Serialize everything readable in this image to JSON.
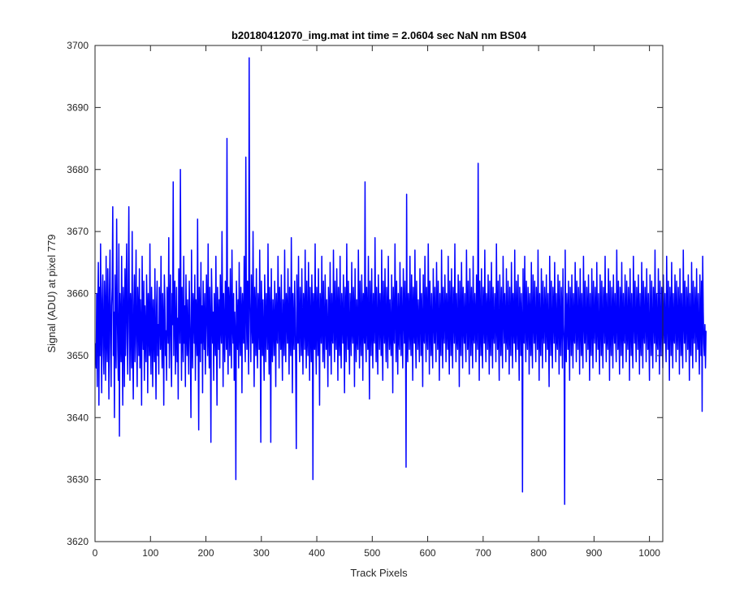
{
  "chart_data": {
    "type": "line",
    "title": "b20180412070_img.mat int time = 2.0604 sec  NaN nm BS04",
    "xlabel": "Track Pixels",
    "ylabel": "Signal (ADU) at pixel 779",
    "xlim": [
      0,
      1024
    ],
    "ylim": [
      3620,
      3700
    ],
    "xticks": [
      0,
      100,
      200,
      300,
      400,
      500,
      600,
      700,
      800,
      900,
      1000
    ],
    "yticks": [
      3620,
      3630,
      3640,
      3650,
      3660,
      3670,
      3680,
      3690,
      3700
    ],
    "grid": false,
    "legend": "none",
    "series": [
      {
        "color": "#0000ff",
        "x_start": 1,
        "x_step": 1,
        "mean": 3655,
        "values": [
          3652,
          3648,
          3660,
          3645,
          3658,
          3665,
          3642,
          3661,
          3650,
          3668,
          3655,
          3644,
          3659,
          3663,
          3651,
          3647,
          3662,
          3657,
          3646,
          3666,
          3653,
          3649,
          3664,
          3656,
          3643,
          3660,
          3667,
          3652,
          3645,
          3658,
          3661,
          3674,
          3650,
          3657,
          3640,
          3663,
          3654,
          3648,
          3672,
          3659,
          3651,
          3646,
          3668,
          3637,
          3660,
          3655,
          3649,
          3666,
          3653,
          3642,
          3661,
          3657,
          3645,
          3664,
          3650,
          3659,
          3668,
          3652,
          3647,
          3662,
          3674,
          3654,
          3646,
          3660,
          3656,
          3648,
          3670,
          3651,
          3643,
          3658,
          3663,
          3649,
          3655,
          3667,
          3652,
          3645,
          3661,
          3657,
          3650,
          3664,
          3648,
          3659,
          3654,
          3642,
          3666,
          3655,
          3651,
          3662,
          3646,
          3658,
          3653,
          3649,
          3663,
          3657,
          3644,
          3660,
          3655,
          3650,
          3668,
          3652,
          3647,
          3661,
          3656,
          3645,
          3659,
          3654,
          3649,
          3664,
          3652,
          3643,
          3658,
          3662,
          3650,
          3655,
          3647,
          3661,
          3657,
          3651,
          3666,
          3653,
          3648,
          3660,
          3655,
          3642,
          3663,
          3659,
          3650,
          3654,
          3646,
          3661,
          3656,
          3652,
          3669,
          3648,
          3657,
          3663,
          3651,
          3645,
          3660,
          3655,
          3678,
          3650,
          3658,
          3662,
          3647,
          3654,
          3661,
          3649,
          3656,
          3643,
          3664,
          3659,
          3652,
          3680,
          3657,
          3646,
          3661,
          3654,
          3649,
          3666,
          3652,
          3658,
          3645,
          3663,
          3655,
          3650,
          3659,
          3653,
          3647,
          3662,
          3656,
          3651,
          3640,
          3667,
          3654,
          3648,
          3660,
          3657,
          3652,
          3663,
          3646,
          3659,
          3655,
          3650,
          3672,
          3653,
          3638,
          3661,
          3656,
          3649,
          3665,
          3652,
          3658,
          3644,
          3662,
          3655,
          3651,
          3660,
          3647,
          3654,
          3663,
          3657,
          3650,
          3668,
          3653,
          3648,
          3661,
          3655,
          3636,
          3664,
          3659,
          3652,
          3657,
          3646,
          3660,
          3654,
          3650,
          3666,
          3653,
          3642,
          3661,
          3656,
          3651,
          3659,
          3648,
          3663,
          3655,
          3652,
          3670,
          3657,
          3645,
          3660,
          3654,
          3649,
          3662,
          3656,
          3651,
          3685,
          3653,
          3647,
          3661,
          3658,
          3650,
          3664,
          3654,
          3648,
          3667,
          3655,
          3652,
          3660,
          3646,
          3657,
          3653,
          3630,
          3662,
          3656,
          3651,
          3659,
          3648,
          3665,
          3654,
          3650,
          3661,
          3657,
          3644,
          3660,
          3655,
          3652,
          3666,
          3653,
          3649,
          3682,
          3658,
          3651,
          3662,
          3655,
          3647,
          3698,
          3660,
          3654,
          3649,
          3663,
          3656,
          3652,
          3670,
          3655,
          3645,
          3661,
          3657,
          3650,
          3664,
          3653,
          3648,
          3660,
          3656,
          3651,
          3667,
          3654,
          3636,
          3662,
          3657,
          3650,
          3659,
          3652,
          3646,
          3663,
          3655,
          3649,
          3660,
          3656,
          3651,
          3668,
          3654,
          3647,
          3661,
          3657,
          3636,
          3664,
          3653,
          3649,
          3659,
          3655,
          3650,
          3662,
          3656,
          3645,
          3660,
          3654,
          3652,
          3666,
          3657,
          3648,
          3661,
          3655,
          3651,
          3663,
          3653,
          3646,
          3659,
          3656,
          3650,
          3667,
          3654,
          3649,
          3660,
          3657,
          3652,
          3664,
          3655,
          3647,
          3661,
          3653,
          3650,
          3669,
          3656,
          3644,
          3660,
          3654,
          3651,
          3662,
          3657,
          3648,
          3635,
          3663,
          3655,
          3652,
          3666,
          3653,
          3649,
          3661,
          3656,
          3650,
          3664,
          3654,
          3647,
          3660,
          3657,
          3651,
          3667,
          3655,
          3648,
          3662,
          3653,
          3650,
          3665,
          3656,
          3646,
          3661,
          3654,
          3649,
          3663,
          3657,
          3630,
          3660,
          3655,
          3651,
          3668,
          3653,
          3647,
          3661,
          3656,
          3650,
          3664,
          3654,
          3642,
          3660,
          3657,
          3652,
          3666,
          3655,
          3649,
          3662,
          3653,
          3648,
          3663,
          3656,
          3651,
          3659,
          3654,
          3645,
          3661,
          3657,
          3650,
          3665,
          3655,
          3647,
          3660,
          3653,
          3652,
          3667,
          3656,
          3649,
          3662,
          3654,
          3651,
          3664,
          3657,
          3646,
          3661,
          3655,
          3650,
          3666,
          3653,
          3648,
          3660,
          3656,
          3652,
          3663,
          3654,
          3644,
          3661,
          3657,
          3649,
          3668,
          3655,
          3651,
          3662,
          3653,
          3647,
          3660,
          3656,
          3650,
          3665,
          3654,
          3652,
          3661,
          3657,
          3645,
          3664,
          3655,
          3649,
          3659,
          3653,
          3651,
          3667,
          3656,
          3648,
          3662,
          3654,
          3650,
          3663,
          3657,
          3646,
          3660,
          3655,
          3652,
          3678,
          3653,
          3649,
          3661,
          3656,
          3651,
          3666,
          3654,
          3643,
          3662,
          3657,
          3650,
          3664,
          3655,
          3648,
          3660,
          3653,
          3652,
          3669,
          3656,
          3649,
          3661,
          3654,
          3647,
          3663,
          3657,
          3651,
          3660,
          3655,
          3650,
          3667,
          3653,
          3646,
          3662,
          3656,
          3652,
          3664,
          3654,
          3649,
          3661,
          3657,
          3648,
          3666,
          3655,
          3651,
          3659,
          3653,
          3650,
          3663,
          3656,
          3644,
          3661,
          3654,
          3652,
          3668,
          3657,
          3649,
          3662,
          3655,
          3647,
          3660,
          3653,
          3651,
          3665,
          3656,
          3650,
          3661,
          3654,
          3648,
          3664,
          3657,
          3652,
          3662,
          3655,
          3632,
          3676,
          3653,
          3649,
          3660,
          3656,
          3651,
          3666,
          3654,
          3650,
          3663,
          3657,
          3646,
          3661,
          3655,
          3652,
          3667,
          3653,
          3648,
          3662,
          3656,
          3651,
          3659,
          3654,
          3649,
          3664,
          3657,
          3650,
          3660,
          3655,
          3645,
          3663,
          3653,
          3652,
          3666,
          3656,
          3649,
          3661,
          3654,
          3651,
          3668,
          3657,
          3647,
          3662,
          3655,
          3650,
          3660,
          3653,
          3648,
          3664,
          3656,
          3652,
          3661,
          3654,
          3649,
          3665,
          3657,
          3651,
          3662,
          3655,
          3646,
          3660,
          3653,
          3650,
          3667,
          3656,
          3648,
          3661,
          3654,
          3652,
          3663,
          3657,
          3649,
          3660,
          3655,
          3651,
          3666,
          3653,
          3647,
          3662,
          3656,
          3650,
          3664,
          3654,
          3648,
          3661,
          3657,
          3652,
          3668,
          3655,
          3649,
          3660,
          3653,
          3651,
          3663,
          3656,
          3645,
          3662,
          3654,
          3650,
          3665,
          3657,
          3648,
          3661,
          3655,
          3652,
          3660,
          3653,
          3649,
          3667,
          3656,
          3651,
          3662,
          3654,
          3647,
          3664,
          3657,
          3650,
          3661,
          3655,
          3648,
          3666,
          3653,
          3652,
          3660,
          3656,
          3649,
          3663,
          3654,
          3651,
          3681,
          3657,
          3646,
          3662,
          3655,
          3650,
          3664,
          3653,
          3648,
          3661,
          3656,
          3652,
          3667,
          3654,
          3649,
          3660,
          3657,
          3651,
          3663,
          3655,
          3647,
          3662,
          3653,
          3650,
          3665,
          3656,
          3648,
          3661,
          3654,
          3652,
          3660,
          3657,
          3649,
          3668,
          3655,
          3651,
          3662,
          3653,
          3646,
          3663,
          3656,
          3650,
          3661,
          3654,
          3648,
          3666,
          3657,
          3652,
          3660,
          3655,
          3649,
          3664,
          3653,
          3651,
          3662,
          3656,
          3647,
          3661,
          3654,
          3650,
          3665,
          3657,
          3648,
          3660,
          3655,
          3652,
          3667,
          3653,
          3649,
          3662,
          3656,
          3651,
          3663,
          3654,
          3646,
          3661,
          3657,
          3650,
          3660,
          3655,
          3628,
          3664,
          3653,
          3652,
          3666,
          3656,
          3649,
          3662,
          3654,
          3651,
          3661,
          3657,
          3647,
          3660,
          3655,
          3650,
          3665,
          3653,
          3648,
          3663,
          3656,
          3652,
          3662,
          3654,
          3649,
          3661,
          3657,
          3651,
          3667,
          3655,
          3646,
          3660,
          3653,
          3650,
          3664,
          3656,
          3648,
          3662,
          3654,
          3652,
          3661,
          3657,
          3649,
          3663,
          3655,
          3651,
          3660,
          3653,
          3645,
          3666,
          3656,
          3650,
          3662,
          3654,
          3648,
          3661,
          3657,
          3652,
          3665,
          3655,
          3649,
          3660,
          3653,
          3651,
          3663,
          3656,
          3647,
          3662,
          3654,
          3650,
          3661,
          3657,
          3648,
          3664,
          3655,
          3652,
          3626,
          3667,
          3653,
          3649,
          3660,
          3656,
          3651,
          3662,
          3654,
          3646,
          3661,
          3657,
          3650,
          3663,
          3655,
          3648,
          3660,
          3653,
          3652,
          3665,
          3656,
          3649,
          3662,
          3654,
          3651,
          3661,
          3657,
          3647,
          3664,
          3655,
          3650,
          3660,
          3653,
          3648,
          3666,
          3656,
          3652,
          3662,
          3654,
          3649,
          3661,
          3657,
          3651,
          3663,
          3655,
          3646,
          3660,
          3653,
          3650,
          3664,
          3656,
          3648,
          3662,
          3654,
          3652,
          3661,
          3657,
          3649,
          3665,
          3655,
          3651,
          3660,
          3653,
          3647,
          3663,
          3656,
          3650,
          3662,
          3654,
          3648,
          3661,
          3657,
          3652,
          3666,
          3655,
          3649,
          3660,
          3653,
          3651,
          3664,
          3656,
          3646,
          3662,
          3654,
          3650,
          3661,
          3657,
          3648,
          3663,
          3655,
          3652,
          3660,
          3653,
          3649,
          3667,
          3656,
          3651,
          3662,
          3654,
          3647,
          3661,
          3657,
          3650,
          3665,
          3655,
          3648,
          3660,
          3653,
          3652,
          3663,
          3656,
          3649,
          3662,
          3654,
          3651,
          3661,
          3657,
          3646,
          3664,
          3655,
          3650,
          3660,
          3653,
          3648,
          3666,
          3656,
          3652,
          3662,
          3654,
          3649,
          3661,
          3657,
          3651,
          3663,
          3655,
          3647,
          3660,
          3653,
          3650,
          3665,
          3656,
          3648,
          3662,
          3654,
          3652,
          3661,
          3657,
          3649,
          3664,
          3655,
          3651,
          3660,
          3653,
          3646,
          3663,
          3656,
          3650,
          3662,
          3654,
          3648,
          3661,
          3657,
          3652,
          3667,
          3655,
          3649,
          3660,
          3653,
          3651,
          3664,
          3656,
          3647,
          3662,
          3654,
          3650,
          3661,
          3657,
          3648,
          3663,
          3655,
          3652,
          3660,
          3653,
          3649,
          3666,
          3656,
          3651,
          3662,
          3654,
          3646,
          3661,
          3657,
          3650,
          3665,
          3655,
          3648,
          3660,
          3653,
          3652,
          3663,
          3656,
          3649,
          3662,
          3654,
          3651,
          3661,
          3657,
          3647,
          3664,
          3655,
          3650,
          3660,
          3653,
          3648,
          3667,
          3656,
          3652,
          3662,
          3654,
          3649,
          3661,
          3657,
          3651,
          3663,
          3655,
          3646,
          3660,
          3653,
          3650,
          3665,
          3656,
          3648,
          3662,
          3654,
          3652,
          3661,
          3657,
          3649,
          3664,
          3655,
          3651,
          3660,
          3653,
          3647,
          3663,
          3656,
          3650,
          3662,
          3641,
          3666,
          3657,
          3652,
          3650,
          3655,
          3648,
          3654
        ]
      }
    ]
  }
}
